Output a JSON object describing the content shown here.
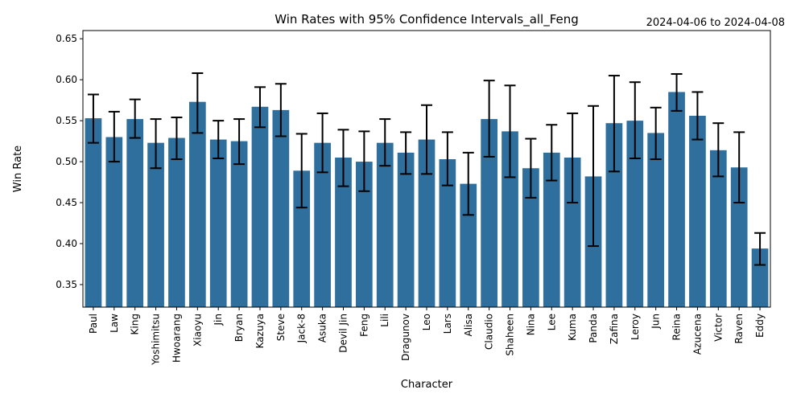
{
  "chart_data": {
    "type": "bar",
    "title": "Win Rates with 95% Confidence Intervals_all_Feng",
    "date_range": "2024-04-06 to 2024-04-08",
    "xlabel": "Character",
    "ylabel": "Win Rate",
    "ylim": [
      0.3225,
      0.66
    ],
    "yticks": [
      "0.35",
      "0.40",
      "0.45",
      "0.50",
      "0.55",
      "0.60",
      "0.65"
    ],
    "grid": false,
    "bar_color": "#2e6f9e",
    "categories": [
      "Paul",
      "Law",
      "King",
      "Yoshimitsu",
      "Hwoarang",
      "Xiaoyu",
      "Jin",
      "Bryan",
      "Kazuya",
      "Steve",
      "Jack-8",
      "Asuka",
      "Devil Jin",
      "Feng",
      "Lili",
      "Dragunov",
      "Leo",
      "Lars",
      "Alisa",
      "Claudio",
      "Shaheen",
      "Nina",
      "Lee",
      "Kuma",
      "Panda",
      "Zafina",
      "Leroy",
      "Jun",
      "Reina",
      "Azucena",
      "Victor",
      "Raven",
      "Eddy"
    ],
    "values": [
      0.553,
      0.53,
      0.552,
      0.523,
      0.529,
      0.573,
      0.527,
      0.525,
      0.567,
      0.563,
      0.489,
      0.523,
      0.505,
      0.5,
      0.523,
      0.511,
      0.527,
      0.503,
      0.473,
      0.552,
      0.537,
      0.492,
      0.511,
      0.505,
      0.482,
      0.547,
      0.55,
      0.535,
      0.585,
      0.556,
      0.514,
      0.493,
      0.394
    ],
    "ci_lower": [
      0.523,
      0.5,
      0.529,
      0.492,
      0.503,
      0.535,
      0.504,
      0.497,
      0.542,
      0.531,
      0.444,
      0.487,
      0.47,
      0.464,
      0.495,
      0.485,
      0.485,
      0.471,
      0.435,
      0.506,
      0.481,
      0.456,
      0.477,
      0.45,
      0.397,
      0.488,
      0.504,
      0.503,
      0.562,
      0.527,
      0.482,
      0.45,
      0.374
    ],
    "ci_upper": [
      0.582,
      0.561,
      0.576,
      0.552,
      0.554,
      0.608,
      0.55,
      0.552,
      0.591,
      0.595,
      0.534,
      0.559,
      0.539,
      0.537,
      0.552,
      0.536,
      0.569,
      0.536,
      0.511,
      0.599,
      0.593,
      0.528,
      0.545,
      0.559,
      0.568,
      0.605,
      0.597,
      0.566,
      0.607,
      0.585,
      0.547,
      0.536,
      0.413
    ]
  }
}
